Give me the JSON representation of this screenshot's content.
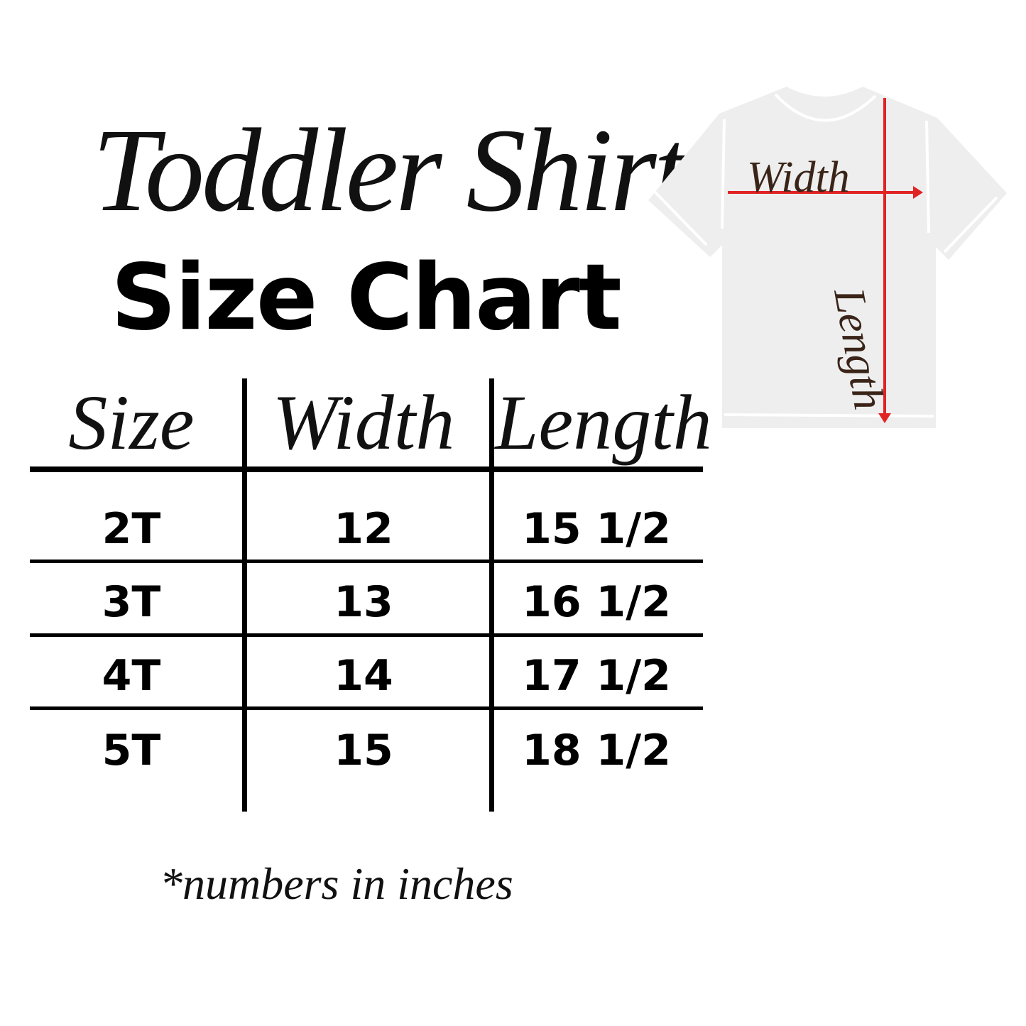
{
  "title": {
    "script": "Toddler Shirt",
    "main": "Size Chart"
  },
  "table": {
    "headers": [
      "Size",
      "Width",
      "Length"
    ],
    "rows": [
      [
        "2T",
        "12",
        "15 1/2"
      ],
      [
        "3T",
        "13",
        "16 1/2"
      ],
      [
        "4T",
        "14",
        "17 1/2"
      ],
      [
        "5T",
        "15",
        "18 1/2"
      ]
    ]
  },
  "diagram": {
    "width_label": "Width",
    "length_label": "Length",
    "shirt_color": "#eeeeee",
    "arrow_color": "#e02424",
    "label_color": "#3a2418"
  },
  "footnote": "*numbers in inches"
}
